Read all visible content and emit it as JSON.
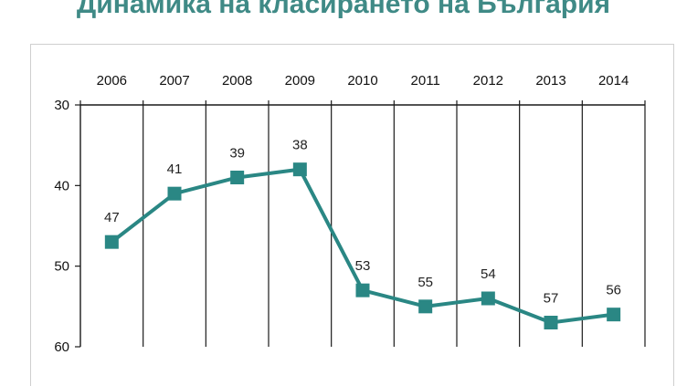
{
  "page": {
    "title": "Динамика на класирането на България"
  },
  "chart_data": {
    "type": "line",
    "categories": [
      "2006",
      "2007",
      "2008",
      "2009",
      "2010",
      "2011",
      "2012",
      "2013",
      "2014"
    ],
    "series": [
      {
        "values": [
          47,
          41,
          39,
          38,
          53,
          55,
          54,
          57,
          56
        ],
        "color": "#2a8784"
      }
    ],
    "ylim": [
      30,
      60
    ],
    "y_reversed": true,
    "yticks": [
      30,
      40,
      50,
      60
    ],
    "x_axis_position": "top",
    "grid": "vertical",
    "data_labels": true,
    "marker": "square",
    "legend": "none"
  }
}
